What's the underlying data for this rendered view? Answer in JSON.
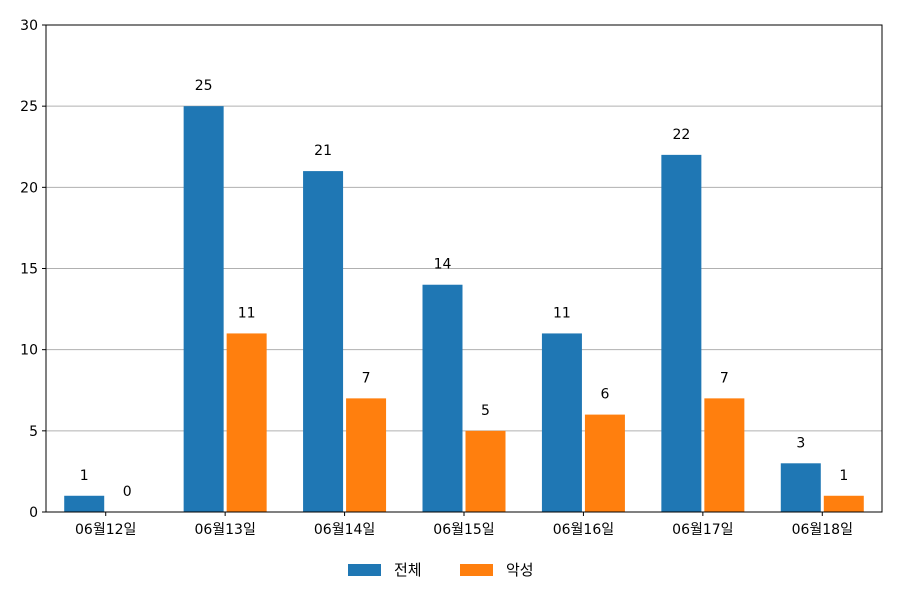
{
  "chart_data": {
    "type": "bar",
    "categories": [
      "06월12일",
      "06월13일",
      "06월14일",
      "06월15일",
      "06월16일",
      "06월17일",
      "06월18일"
    ],
    "series": [
      {
        "name": "전체",
        "values": [
          1,
          25,
          21,
          14,
          11,
          22,
          3
        ],
        "color": "#1f77b4"
      },
      {
        "name": "악성",
        "values": [
          0,
          11,
          7,
          5,
          6,
          7,
          1
        ],
        "color": "#ff7f0e"
      }
    ],
    "ylim": [
      0,
      30
    ],
    "yticks": [
      0,
      5,
      10,
      15,
      20,
      25,
      30
    ],
    "grid": "horizontal",
    "legend_position": "bottom-center",
    "title": "",
    "xlabel": "",
    "ylabel": ""
  }
}
